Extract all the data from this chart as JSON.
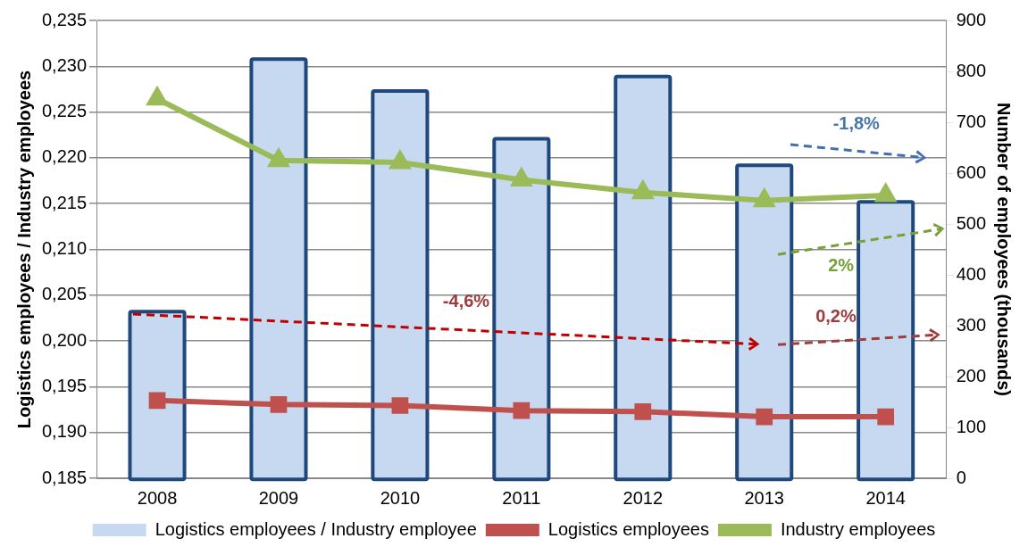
{
  "chart_data": {
    "type": "bar",
    "categories": [
      "2008",
      "2009",
      "2010",
      "2011",
      "2012",
      "2013",
      "2014"
    ],
    "ylabel": "Logistics employees / Industry employees",
    "y2label": "Number of employees (thousands)",
    "series": [
      {
        "name": "Logistics employees / Industry employee",
        "color": "#c6d9f0",
        "values": [
          0.203,
          0.2306,
          0.2271,
          0.2219,
          0.2287,
          0.219,
          0.215
        ]
      },
      {
        "name": "Logistics employees",
        "type": "line",
        "axis": "y2",
        "color": "#c0504d",
        "marker": "square",
        "values": [
          153,
          145,
          143,
          133,
          131,
          121,
          121
        ]
      },
      {
        "name": "Industry employees",
        "type": "line",
        "axis": "y2",
        "color": "#9bbb59",
        "marker": "triangle",
        "values": [
          746,
          625,
          621,
          587,
          562,
          546,
          556
        ]
      }
    ],
    "ylim": [
      0.185,
      0.235
    ],
    "yticks": [
      {
        "value": 0.185,
        "label": "0,185"
      },
      {
        "value": 0.19,
        "label": "0,190"
      },
      {
        "value": 0.195,
        "label": "0,195"
      },
      {
        "value": 0.2,
        "label": "0,200"
      },
      {
        "value": 0.205,
        "label": "0,205"
      },
      {
        "value": 0.21,
        "label": "0,210"
      },
      {
        "value": 0.215,
        "label": "0,215"
      },
      {
        "value": 0.22,
        "label": "0,220"
      },
      {
        "value": 0.225,
        "label": "0,225"
      },
      {
        "value": 0.23,
        "label": "0,230"
      },
      {
        "value": 0.235,
        "label": "0,235"
      }
    ],
    "y2lim": [
      0,
      900
    ],
    "y2ticks": [
      0,
      100,
      200,
      300,
      400,
      500,
      600,
      700,
      800,
      900
    ],
    "annotations": [
      "-1,8%",
      "2%",
      "-4,6%",
      "0,2%"
    ],
    "grid": "y",
    "legend": "bottom"
  }
}
